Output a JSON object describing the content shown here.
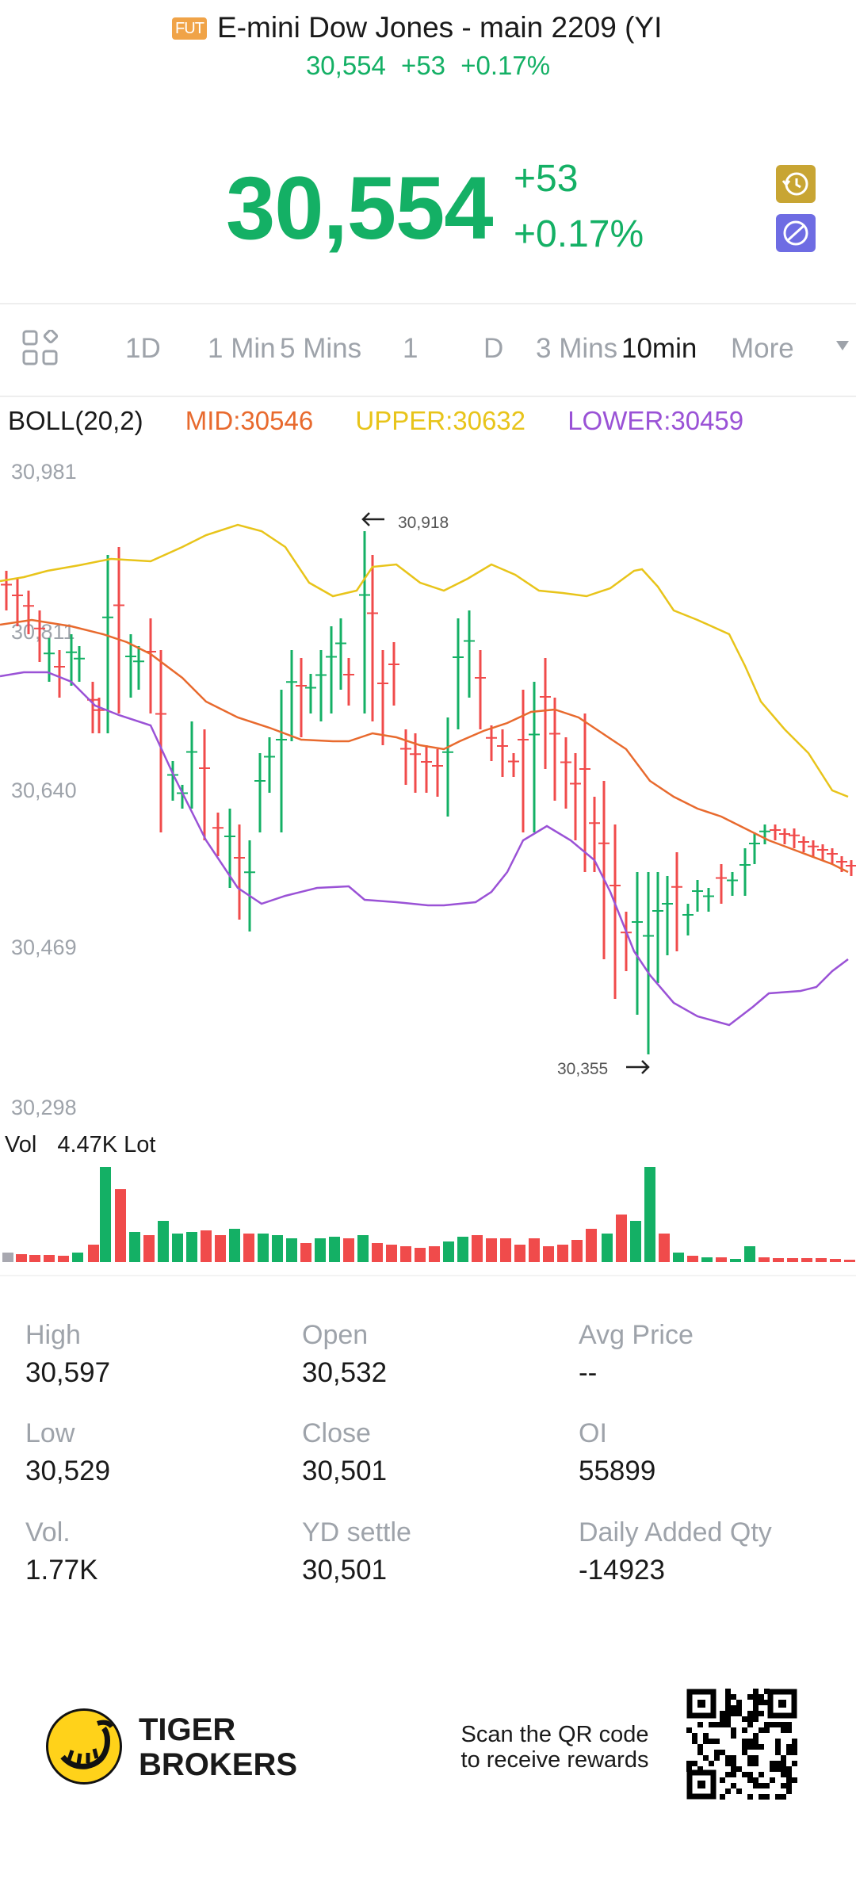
{
  "header": {
    "badge": "FUT",
    "title": "E-mini Dow Jones - main 2209 (YI",
    "subtitle": "30,554 +53 +0.17%"
  },
  "quote": {
    "price": "30,554",
    "change": "+53",
    "change_pct": "+0.17%",
    "color": "#14b065"
  },
  "icons": {
    "history": "history-icon",
    "hide": "eye-off-icon",
    "layout": "grid-layout-icon"
  },
  "periods": [
    {
      "label": "1D",
      "active": false
    },
    {
      "label": "1 Min",
      "active": false
    },
    {
      "label": "5 Mins",
      "active": false
    },
    {
      "label": "1",
      "active": false
    },
    {
      "label": "D",
      "active": false
    },
    {
      "label": "3 Mins",
      "active": false
    },
    {
      "label": "10min",
      "active": true
    },
    {
      "label": "More",
      "active": false
    }
  ],
  "boll": {
    "name": "BOLL(20,2)",
    "mid": "MID:30546",
    "upper": "UPPER:30632",
    "lower": "LOWER:30459",
    "mid_color": "#e86a2e",
    "upper_color": "#e8c41a",
    "lower_color": "#9a52d6"
  },
  "chart_data": {
    "type": "candlestick",
    "y_ticks": [
      "30,981",
      "30,811",
      "30,640",
      "30,469",
      "30,298"
    ],
    "ylim": [
      30298,
      30981
    ],
    "up_color": "#14b065",
    "down_color": "#f04b4b",
    "high_marker": "30,918",
    "low_marker": "30,355",
    "volume_label": "Vol",
    "volume_value": "4.47K Lot"
  },
  "stats": [
    {
      "label": "High",
      "value": "30,597"
    },
    {
      "label": "Open",
      "value": "30,532"
    },
    {
      "label": "Avg Price",
      "value": "--"
    },
    {
      "label": "Low",
      "value": "30,529"
    },
    {
      "label": "Close",
      "value": "30,501"
    },
    {
      "label": "OI",
      "value": "55899"
    },
    {
      "label": "Vol.",
      "value": "1.77K"
    },
    {
      "label": "YD settle",
      "value": "30,501"
    },
    {
      "label": "Daily Added Qty",
      "value": "-14923"
    }
  ],
  "footer": {
    "brand_line1": "TIGER",
    "brand_line2": "BROKERS",
    "scan_line1": "Scan the QR code",
    "scan_line2": "to receive rewards"
  }
}
